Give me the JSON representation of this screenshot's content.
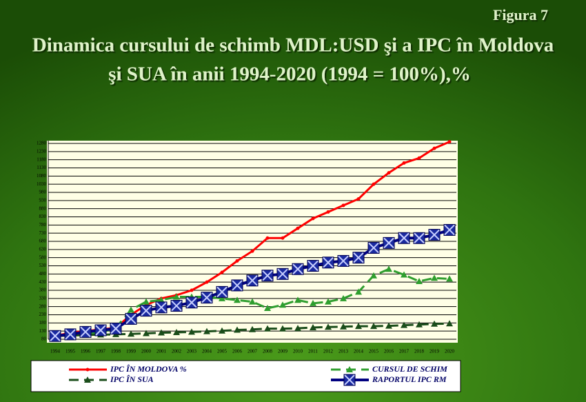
{
  "chart_data": {
    "type": "line",
    "figure_label": "Figura 7",
    "title": "Dinamica cursului de schimb MDL:USD şi a IPC în Moldova",
    "subtitle": "şi SUA în anii 1994-2020 (1994 = 100%),%",
    "categories": [
      "1994",
      "1995",
      "1996",
      "1997",
      "1998",
      "1999",
      "2000",
      "2001",
      "2002",
      "2003",
      "2004",
      "2005",
      "2006",
      "2007",
      "2008",
      "2009",
      "2010",
      "2011",
      "2012",
      "2013",
      "2014",
      "2015",
      "2016",
      "2017",
      "2018",
      "2019",
      "2020"
    ],
    "ylim": [
      80,
      1280
    ],
    "yticks": [
      80,
      130,
      180,
      230,
      280,
      330,
      380,
      430,
      480,
      530,
      580,
      630,
      680,
      730,
      780,
      830,
      880,
      930,
      980,
      1030,
      1080,
      1130,
      1180,
      1230,
      1280
    ],
    "grid": true,
    "series": [
      {
        "name": "IPC ÎN MOLDOVA %",
        "color": "#ff0000",
        "marker": "plus",
        "dash": false,
        "values": [
          100,
          120,
          130,
          140,
          150,
          230,
          290,
          330,
          350,
          380,
          430,
          490,
          560,
          620,
          700,
          700,
          760,
          820,
          860,
          900,
          940,
          1030,
          1100,
          1160,
          1190,
          1250,
          1290
        ]
      },
      {
        "name": "CURSUL DE SCHIM",
        "color": "#2e9e2e",
        "marker": "triangle",
        "dash": true,
        "values": [
          100,
          110,
          115,
          120,
          150,
          260,
          310,
          320,
          340,
          340,
          340,
          330,
          320,
          310,
          270,
          290,
          320,
          300,
          310,
          330,
          370,
          470,
          510,
          475,
          435,
          455,
          450
        ]
      },
      {
        "name": "IPC ÎN SUA",
        "color": "#1a4d1a",
        "marker": "triangle",
        "dash": true,
        "values": [
          100,
          103,
          106,
          108,
          110,
          113,
          116,
          120,
          122,
          125,
          128,
          132,
          137,
          140,
          145,
          145,
          147,
          152,
          155,
          157,
          160,
          160,
          162,
          166,
          170,
          174,
          176
        ]
      },
      {
        "name": "RAPORTUL IPC RM",
        "color": "#000080",
        "marker": "xbox",
        "dash": false,
        "values": [
          100,
          110,
          125,
          135,
          145,
          205,
          255,
          275,
          285,
          305,
          335,
          370,
          410,
          440,
          470,
          480,
          510,
          530,
          550,
          560,
          580,
          640,
          670,
          700,
          700,
          720,
          750
        ]
      }
    ]
  }
}
